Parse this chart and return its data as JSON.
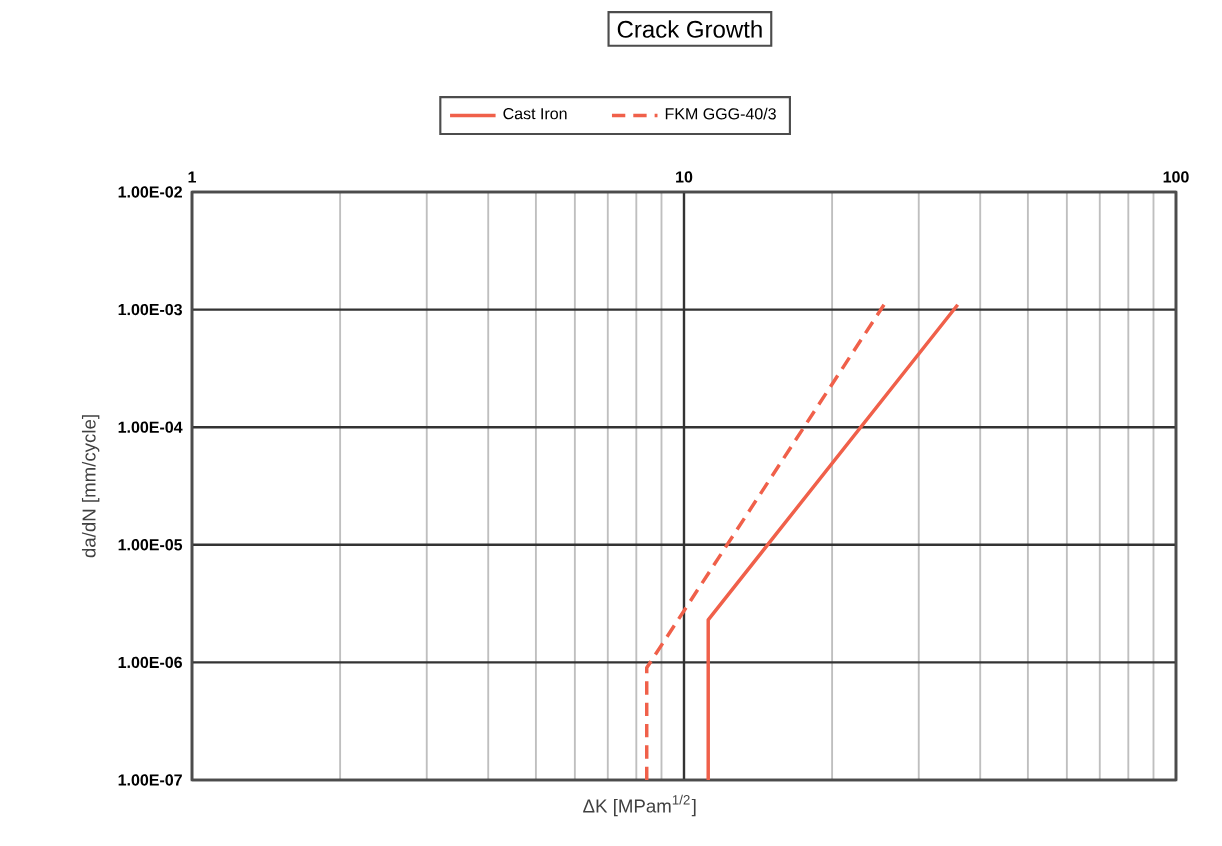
{
  "chart_data": {
    "type": "line",
    "title": "Crack Growth",
    "xlabel": "ΔK [MPam$^{1/2}$]",
    "ylabel": "da/dN [mm/cycle]",
    "log": "xy",
    "grid": true,
    "legend": "top",
    "marker": "none",
    "xlim": [
      1,
      100
    ],
    "xticks": [
      1,
      10,
      100
    ],
    "ylim": [
      1e-07,
      0.01
    ],
    "yticks": [
      {
        "value": 1e-07,
        "label": "1.00E-07"
      },
      {
        "value": 1e-06,
        "label": "1.00E-06"
      },
      {
        "value": 1e-05,
        "label": "1.00E-05"
      },
      {
        "value": 0.0001,
        "label": "1.00E-04"
      },
      {
        "value": 0.001,
        "label": "1.00E-03"
      },
      {
        "value": 0.01,
        "label": "1.00E-02"
      }
    ],
    "series": [
      {
        "name": "Cast Iron",
        "color": "#f0604a",
        "line_style": "solid",
        "x": [
          11.2,
          11.2,
          36
        ],
        "values": [
          1e-07,
          2.3e-06,
          0.0011
        ]
      },
      {
        "name": "FKM GGG-40/3",
        "color": "#f0604a",
        "line_style": "dashed",
        "x": [
          8.4,
          8.4,
          25.5
        ],
        "values": [
          1e-07,
          9e-07,
          0.0011
        ]
      }
    ]
  }
}
